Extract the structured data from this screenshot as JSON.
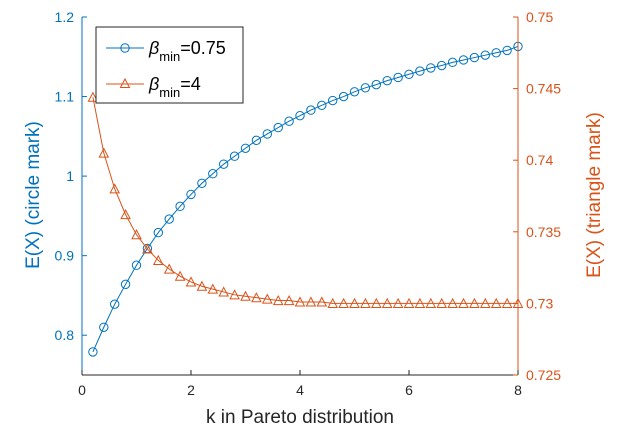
{
  "chart_data": {
    "type": "line",
    "xlabel": "k in Pareto distribution",
    "ylabel_left": "E(X) (circle mark)",
    "ylabel_right": "E(X) (triangle mark)",
    "xlim": [
      0,
      8
    ],
    "ylim_left": [
      0.75,
      1.2
    ],
    "ylim_right": [
      0.725,
      0.75
    ],
    "x_ticks": [
      "0",
      "2",
      "4",
      "6",
      "8"
    ],
    "y_left_ticks": [
      "0.8",
      "0.9",
      "1",
      "1.1",
      "1.2"
    ],
    "y_right_ticks": [
      "0.725",
      "0.73",
      "0.735",
      "0.74",
      "0.745",
      "0.75"
    ],
    "grid": false,
    "legend_position": "top-left",
    "colors": {
      "left": "#0072BD",
      "right": "#D95319"
    },
    "x": [
      0.2,
      0.4,
      0.6,
      0.8,
      1.0,
      1.2,
      1.4,
      1.6,
      1.8,
      2.0,
      2.2,
      2.4,
      2.6,
      2.8,
      3.0,
      3.2,
      3.4,
      3.6,
      3.8,
      4.0,
      4.2,
      4.4,
      4.6,
      4.8,
      5.0,
      5.2,
      5.4,
      5.6,
      5.8,
      6.0,
      6.2,
      6.4,
      6.6,
      6.8,
      7.0,
      7.2,
      7.4,
      7.6,
      7.8,
      8.0
    ],
    "series": [
      {
        "legend_base": "β",
        "legend_sub": "min",
        "legend_suffix": "=0.75",
        "axis": "left",
        "marker": "circle",
        "values": [
          0.779,
          0.81,
          0.839,
          0.864,
          0.888,
          0.909,
          0.929,
          0.946,
          0.962,
          0.977,
          0.991,
          1.003,
          1.015,
          1.025,
          1.035,
          1.045,
          1.053,
          1.061,
          1.069,
          1.076,
          1.083,
          1.089,
          1.095,
          1.1,
          1.106,
          1.111,
          1.115,
          1.12,
          1.124,
          1.128,
          1.132,
          1.136,
          1.139,
          1.143,
          1.146,
          1.149,
          1.152,
          1.155,
          1.158,
          1.163
        ]
      },
      {
        "legend_base": "β",
        "legend_sub": "min",
        "legend_suffix": "=4",
        "axis": "right",
        "marker": "triangle",
        "values": [
          0.7444,
          0.7405,
          0.738,
          0.7362,
          0.7348,
          0.7338,
          0.733,
          0.7324,
          0.7319,
          0.7315,
          0.7312,
          0.731,
          0.7308,
          0.7306,
          0.7305,
          0.7304,
          0.7303,
          0.7302,
          0.7302,
          0.7301,
          0.7301,
          0.7301,
          0.73,
          0.73,
          0.73,
          0.73,
          0.73,
          0.73,
          0.73,
          0.73,
          0.73,
          0.73,
          0.73,
          0.73,
          0.73,
          0.73,
          0.73,
          0.73,
          0.73,
          0.73
        ]
      }
    ]
  }
}
